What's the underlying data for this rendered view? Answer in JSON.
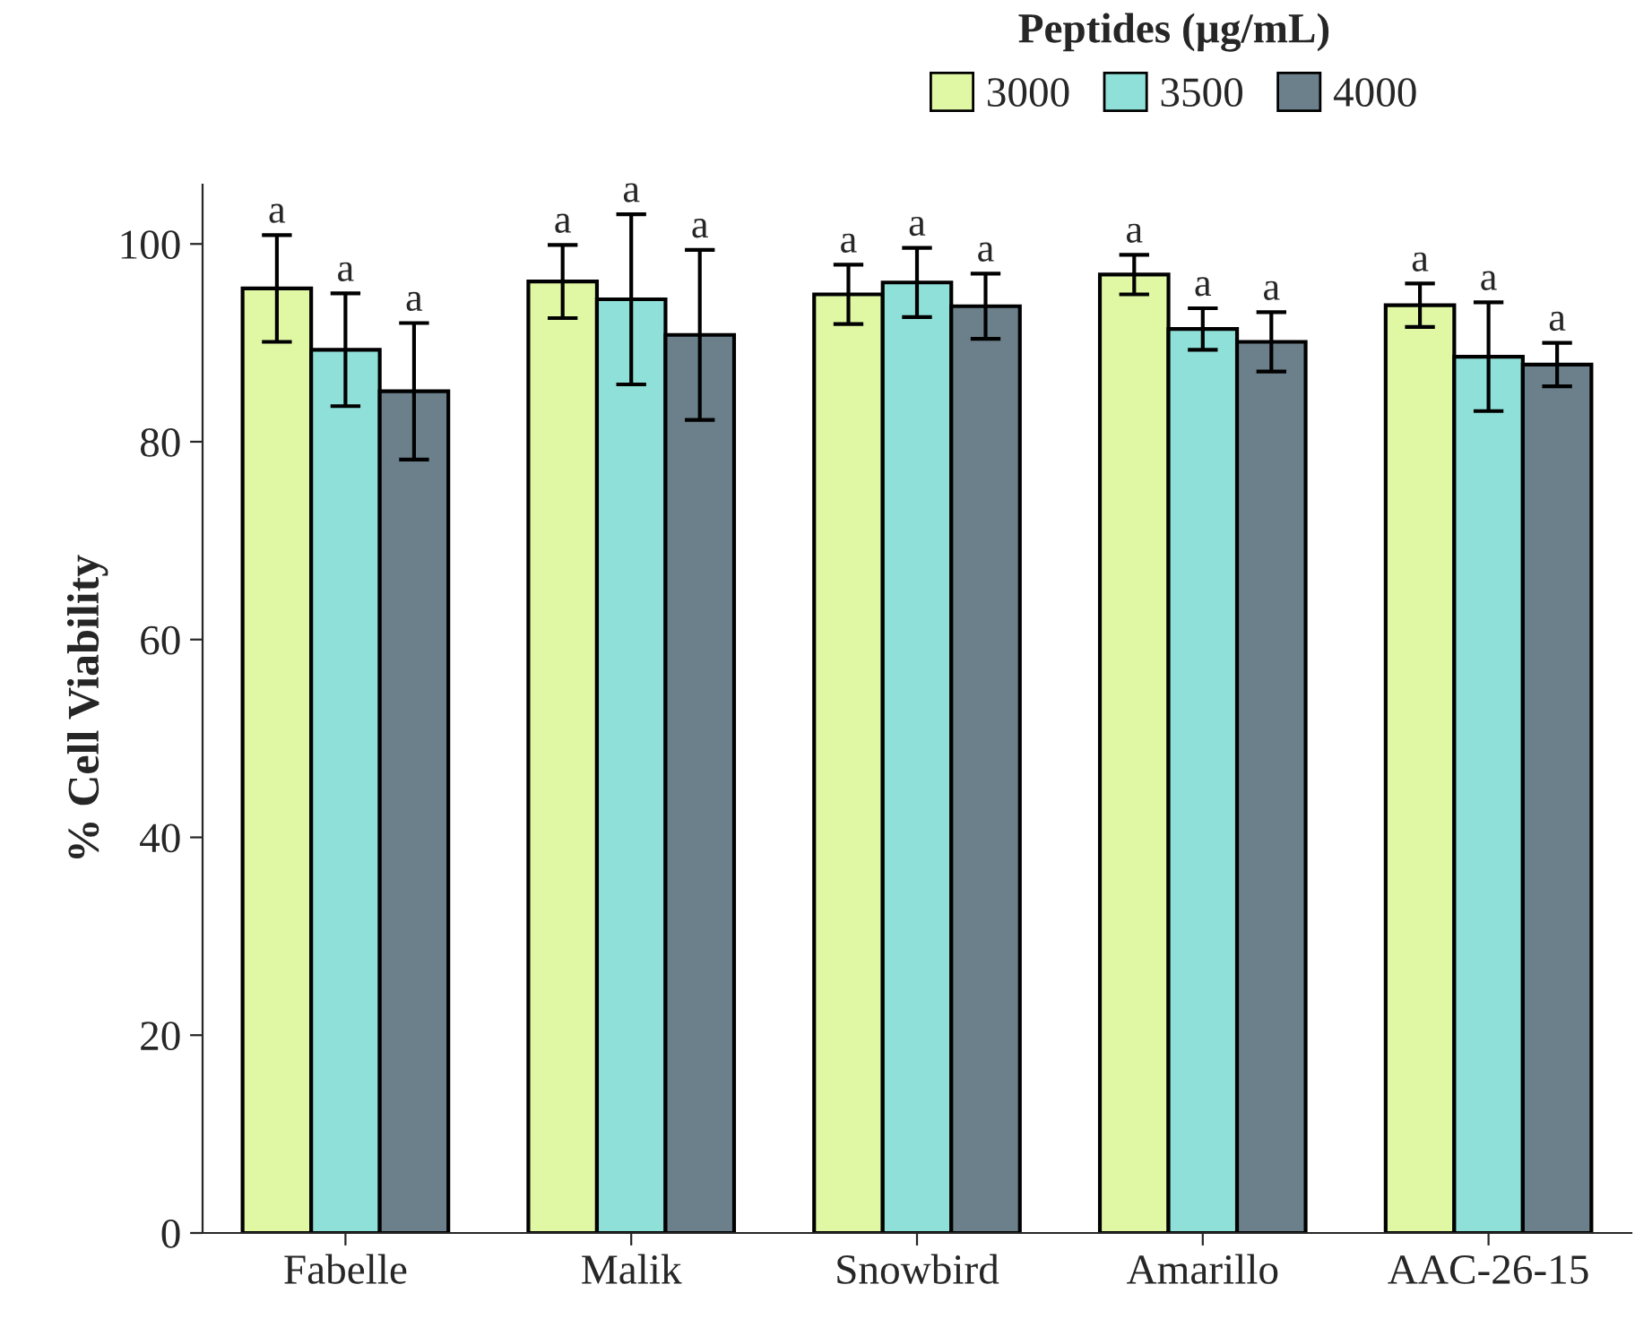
{
  "chart_data": {
    "type": "bar",
    "ylabel": "% Cell Viability",
    "legend_title": "Peptides (µg/mL)",
    "legend": "top",
    "categories": [
      "Fabelle",
      "Malik",
      "Snowbird",
      "Amarillo",
      "AAC-26-15"
    ],
    "series": [
      {
        "name": "3000",
        "color": "#e0f8a4",
        "values": [
          95.5,
          96.2,
          94.9,
          96.9,
          93.8
        ],
        "errors": [
          5.4,
          3.7,
          3.0,
          2.0,
          2.2
        ],
        "value_labels": [
          "a",
          "a",
          "a",
          "a",
          "a"
        ]
      },
      {
        "name": "3500",
        "color": "#8fe0d8",
        "values": [
          89.3,
          94.4,
          96.1,
          91.4,
          88.6
        ],
        "errors": [
          5.7,
          8.6,
          3.5,
          2.1,
          5.5
        ],
        "value_labels": [
          "a",
          "a",
          "a",
          "a",
          "a"
        ]
      },
      {
        "name": "4000",
        "color": "#6b808a",
        "values": [
          85.1,
          90.8,
          93.7,
          90.1,
          87.8
        ],
        "errors": [
          6.9,
          8.6,
          3.3,
          3.0,
          2.2
        ],
        "value_labels": [
          "a",
          "a",
          "a",
          "a",
          "a"
        ]
      }
    ],
    "ylim": [
      0,
      106
    ],
    "yticks": [
      0,
      20,
      40,
      60,
      80,
      100
    ],
    "grid": false
  }
}
